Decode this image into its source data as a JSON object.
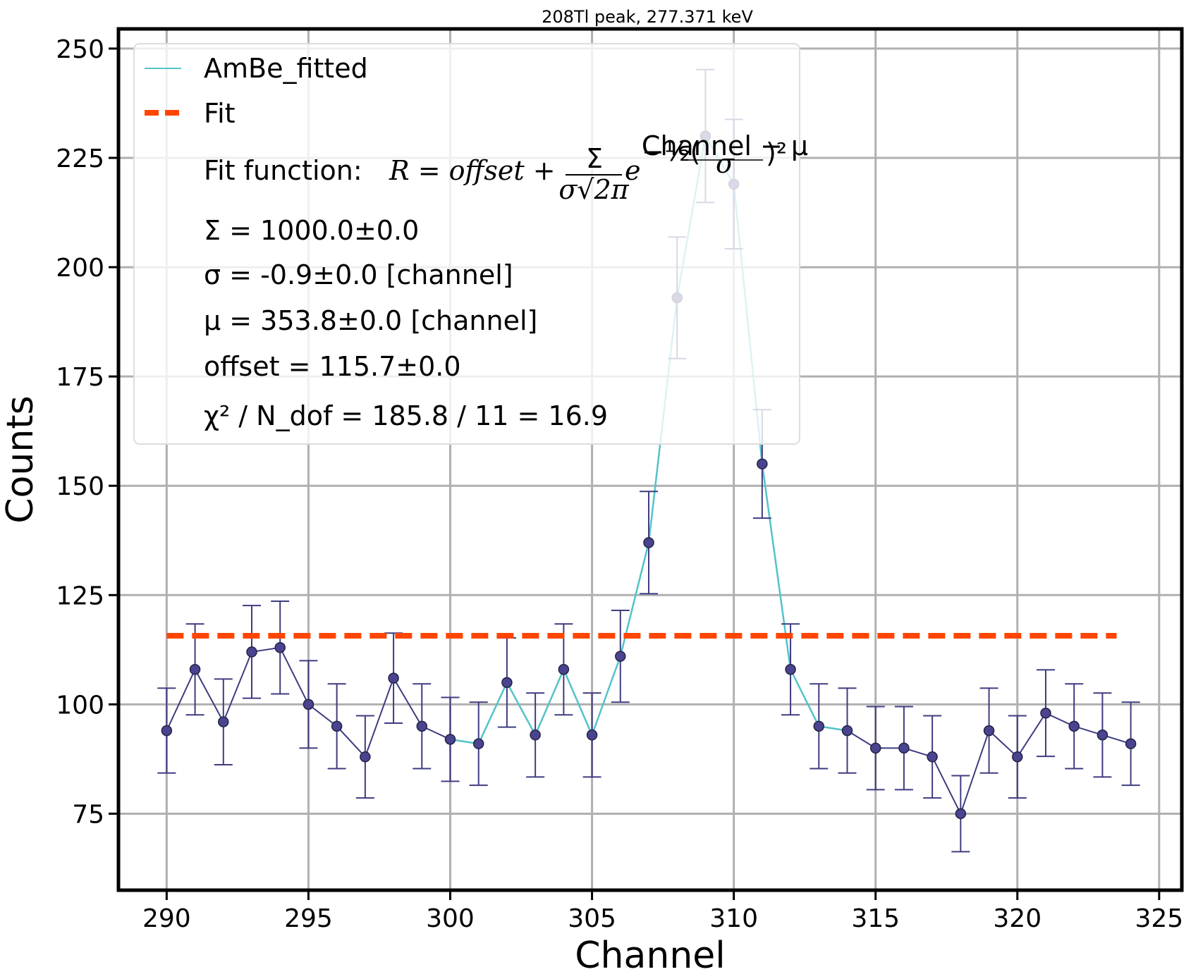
{
  "colors": {
    "data": "#3f3c80",
    "data_marker": "#4a4490",
    "fitted": "#54c4c8",
    "fit": "#ff4500",
    "grid": "#b0b0b0"
  },
  "chart_data": {
    "type": "line",
    "title": "208Tl peak, 277.371 keV",
    "xlabel": "Channel",
    "ylabel": "Counts",
    "xlim": [
      288.3,
      325.8
    ],
    "ylim": [
      57.5,
      254.5
    ],
    "xticks": [
      290,
      295,
      300,
      305,
      310,
      315,
      320,
      325
    ],
    "yticks": [
      75,
      100,
      125,
      150,
      175,
      200,
      225,
      250
    ],
    "grid": true,
    "legend_position": "top-left",
    "series": [
      {
        "name": "data",
        "x": [
          290,
          291,
          292,
          293,
          294,
          295,
          296,
          297,
          298,
          299,
          300,
          301,
          302,
          303,
          304,
          305,
          306,
          307,
          308,
          309,
          310,
          311,
          312,
          313,
          314,
          315,
          316,
          317,
          318,
          319,
          320,
          321,
          322,
          323,
          324
        ],
        "y": [
          94,
          108,
          96,
          112,
          113,
          100,
          95,
          88,
          106,
          95,
          92,
          91,
          105,
          93,
          108,
          93,
          111,
          137,
          193,
          230,
          219,
          155,
          108,
          95,
          94,
          90,
          90,
          88,
          75,
          94,
          88,
          98,
          95,
          93,
          91
        ],
        "yerr": [
          9.7,
          10.4,
          9.8,
          10.6,
          10.6,
          10,
          9.7,
          9.4,
          10.3,
          9.7,
          9.6,
          9.5,
          10.2,
          9.6,
          10.4,
          9.6,
          10.5,
          11.7,
          13.9,
          15.2,
          14.8,
          12.4,
          10.4,
          9.7,
          9.7,
          9.5,
          9.5,
          9.4,
          8.7,
          9.7,
          9.4,
          9.9,
          9.7,
          9.6,
          9.5
        ]
      },
      {
        "name": "AmBe_fitted",
        "x": [
          300,
          301,
          302,
          303,
          304,
          305,
          306,
          307,
          308,
          309,
          310,
          311,
          312,
          313,
          314
        ],
        "y": [
          92,
          91,
          105,
          93,
          108,
          93,
          111,
          137,
          193,
          230,
          219,
          155,
          108,
          95,
          94
        ]
      },
      {
        "name": "Fit",
        "x": [
          290,
          323.5
        ],
        "y": [
          115.7,
          115.7
        ]
      }
    ],
    "legend": {
      "fitted_label": "AmBe_fitted",
      "fit_label": "Fit",
      "fit_function_prefix": "Fit function: ",
      "sigma_total": "Σ = 1000.0±0.0",
      "sigma": "σ = -0.9±0.0 [channel]",
      "mu": "μ = 353.8±0.0 [channel]",
      "offset": "offset = 115.7±0.0",
      "chi2": "χ² / N_dof = 185.8 / 11 = 16.9"
    }
  }
}
